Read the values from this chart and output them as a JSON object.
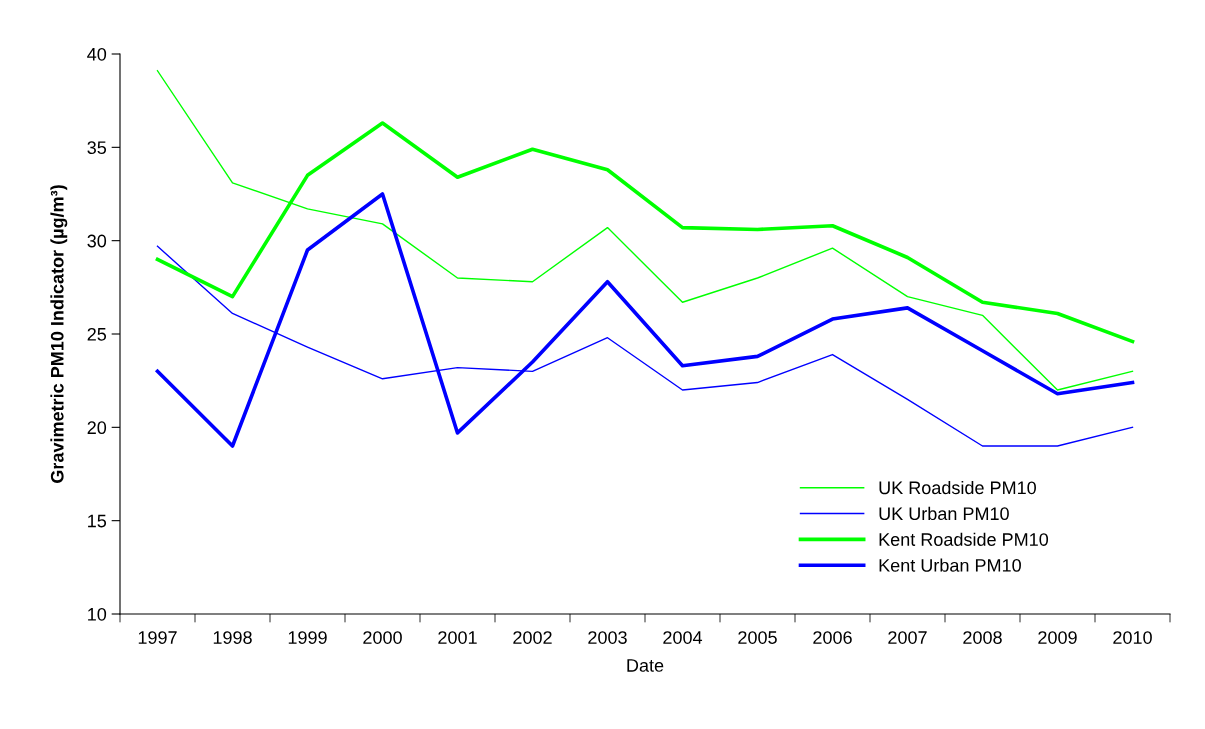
{
  "chart_data": {
    "type": "line",
    "xlabel": "Date",
    "ylabel": "Gravimetric PM10 Indicator (µg/m³)",
    "categories": [
      "1997",
      "1998",
      "1999",
      "2000",
      "2001",
      "2002",
      "2003",
      "2004",
      "2005",
      "2006",
      "2007",
      "2008",
      "2009",
      "2010"
    ],
    "series": [
      {
        "name": "UK Roadside PM10",
        "color": "#00ff00",
        "values": [
          39.1,
          33.1,
          31.7,
          30.9,
          28.0,
          27.8,
          30.7,
          26.7,
          28.0,
          29.6,
          27.0,
          26.0,
          22.0,
          23.0
        ]
      },
      {
        "name": "UK Urban PM10",
        "color": "#0000ff",
        "values": [
          29.7,
          26.1,
          24.3,
          22.6,
          23.2,
          23.0,
          24.8,
          22.0,
          22.4,
          23.9,
          21.5,
          19.0,
          19.0,
          20.0
        ]
      },
      {
        "name": "Kent Roadside PM10",
        "color": "#00ff00",
        "values": [
          29.0,
          27.0,
          33.5,
          36.3,
          33.4,
          34.9,
          33.8,
          30.7,
          30.6,
          30.8,
          29.1,
          26.7,
          26.1,
          24.6
        ]
      },
      {
        "name": "Kent Urban PM10",
        "color": "#0000ff",
        "values": [
          23.0,
          19.0,
          29.5,
          32.5,
          19.7,
          23.5,
          27.8,
          23.3,
          23.8,
          25.8,
          26.4,
          24.1,
          21.8,
          22.4
        ]
      }
    ],
    "ylim": [
      10,
      40
    ],
    "yticks": [
      10,
      15,
      20,
      25,
      30,
      35,
      40
    ],
    "grid": false,
    "legend": "bottom right",
    "marker": "none",
    "line_style": "solid"
  }
}
